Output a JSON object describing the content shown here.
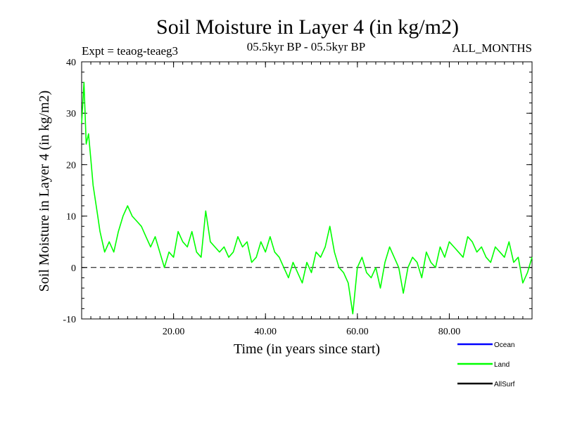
{
  "chart_data": {
    "type": "line",
    "title": "Soil Moisture in Layer 4 (in kg/m2)",
    "experiment_label": "Expt = teaog-teaeg3",
    "period_label": "05.5kyr BP - 05.5kyr BP",
    "months_label": "ALL_MONTHS",
    "xlabel": "Time (in years since start)",
    "ylabel": "Soil Moisture in Layer 4 (in kg/m2)",
    "xlim": [
      0,
      98
    ],
    "ylim": [
      -10,
      40
    ],
    "x_ticks": [
      20,
      40,
      60,
      80
    ],
    "x_tick_labels": [
      "20.00",
      "40.00",
      "60.00",
      "80.00"
    ],
    "y_ticks": [
      -10,
      0,
      10,
      20,
      30,
      40
    ],
    "y_tick_labels": [
      "-10",
      "0",
      "10",
      "20",
      "30",
      "40"
    ],
    "zero_reference_line": true,
    "legend": [
      {
        "name": "Ocean",
        "color": "#0000ff"
      },
      {
        "name": "Land",
        "color": "#00ff00"
      },
      {
        "name": "AllSurf",
        "color": "#000000"
      }
    ],
    "series": [
      {
        "name": "Land",
        "color": "#00ff00",
        "x": [
          0,
          0.5,
          1,
          1.5,
          2,
          2.5,
          3,
          3.5,
          4,
          4.5,
          5,
          6,
          7,
          8,
          9,
          10,
          11,
          12,
          13,
          14,
          15,
          16,
          17,
          18,
          19,
          20,
          21,
          22,
          23,
          24,
          25,
          26,
          27,
          28,
          29,
          30,
          31,
          32,
          33,
          34,
          35,
          36,
          37,
          38,
          39,
          40,
          41,
          42,
          43,
          44,
          45,
          46,
          47,
          48,
          49,
          50,
          51,
          52,
          53,
          54,
          55,
          56,
          57,
          58,
          59,
          60,
          61,
          62,
          63,
          64,
          65,
          66,
          67,
          68,
          69,
          70,
          71,
          72,
          73,
          74,
          75,
          76,
          77,
          78,
          79,
          80,
          81,
          82,
          83,
          84,
          85,
          86,
          87,
          88,
          89,
          90,
          91,
          92,
          93,
          94,
          95,
          96,
          97,
          98
        ],
        "y": [
          28,
          36,
          24,
          26,
          21,
          16,
          13,
          10,
          7,
          5,
          3,
          5,
          3,
          7,
          10,
          12,
          10,
          9,
          8,
          6,
          4,
          6,
          3,
          0,
          3,
          2,
          7,
          5,
          4,
          7,
          3,
          2,
          11,
          5,
          4,
          3,
          4,
          2,
          3,
          6,
          4,
          5,
          1,
          2,
          5,
          3,
          6,
          3,
          2,
          0,
          -2,
          1,
          -1,
          -3,
          1,
          -1,
          3,
          2,
          4,
          8,
          3,
          0,
          -1,
          -3,
          -9,
          0,
          2,
          -1,
          -2,
          0,
          -4,
          1,
          4,
          2,
          0,
          -5,
          0,
          2,
          1,
          -2,
          3,
          1,
          0,
          4,
          2,
          5,
          4,
          3,
          2,
          6,
          5,
          3,
          4,
          2,
          1,
          4,
          3,
          2,
          5,
          1,
          2,
          -3,
          -1,
          2
        ]
      }
    ]
  }
}
